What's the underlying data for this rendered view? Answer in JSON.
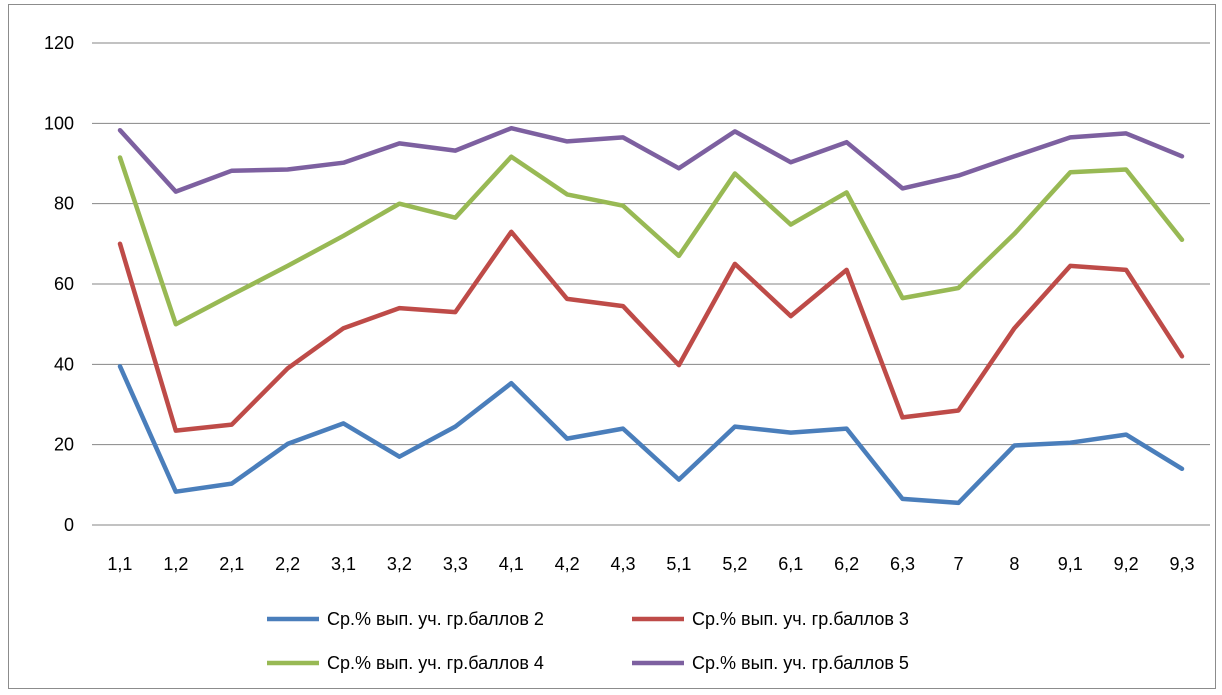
{
  "chart_data": {
    "type": "line",
    "title": "",
    "xlabel": "",
    "ylabel": "",
    "ylim": [
      0,
      120
    ],
    "y_ticks": [
      "0",
      "20",
      "40",
      "60",
      "80",
      "100",
      "120"
    ],
    "grid": "horizontal",
    "legend_position": "bottom",
    "categories": [
      "1,1",
      "1,2",
      "2,1",
      "2,2",
      "3,1",
      "3,2",
      "3,3",
      "4,1",
      "4,2",
      "4,3",
      "5,1",
      "5,2",
      "6,1",
      "6,2",
      "6,3",
      "7",
      "8",
      "9,1",
      "9,2",
      "9,3"
    ],
    "series": [
      {
        "name": "Ср.% вып. уч. гр.баллов 2",
        "color": "#4a7ebb",
        "values": [
          39.5,
          8.3,
          10.3,
          20.2,
          25.3,
          17.0,
          24.5,
          35.3,
          21.5,
          24.0,
          11.3,
          24.5,
          23.0,
          24.0,
          6.5,
          5.5,
          19.8,
          20.5,
          22.5,
          14.0
        ]
      },
      {
        "name": "Ср.% вып. уч. гр.баллов 3",
        "color": "#be4b48",
        "values": [
          70.0,
          23.5,
          25.0,
          39.0,
          49.0,
          54.0,
          53.0,
          73.0,
          56.3,
          54.5,
          39.8,
          65.0,
          52.0,
          63.5,
          26.8,
          28.5,
          49.0,
          64.5,
          63.5,
          42.0
        ]
      },
      {
        "name": "Ср.% вып. уч. гр.баллов 4",
        "color": "#98b954",
        "values": [
          91.5,
          50.0,
          57.3,
          64.5,
          72.0,
          80.0,
          76.5,
          91.7,
          82.3,
          79.5,
          67.0,
          87.5,
          74.8,
          82.8,
          56.5,
          59.0,
          72.5,
          87.8,
          88.5,
          71.0
        ]
      },
      {
        "name": "Ср.% вып. уч. гр.баллов 5",
        "color": "#7d60a0",
        "values": [
          98.3,
          83.0,
          88.2,
          88.5,
          90.2,
          95.0,
          93.2,
          98.8,
          95.5,
          96.5,
          88.8,
          98.0,
          90.3,
          95.3,
          83.8,
          87.0,
          91.8,
          96.5,
          97.5,
          91.8
        ]
      }
    ]
  }
}
